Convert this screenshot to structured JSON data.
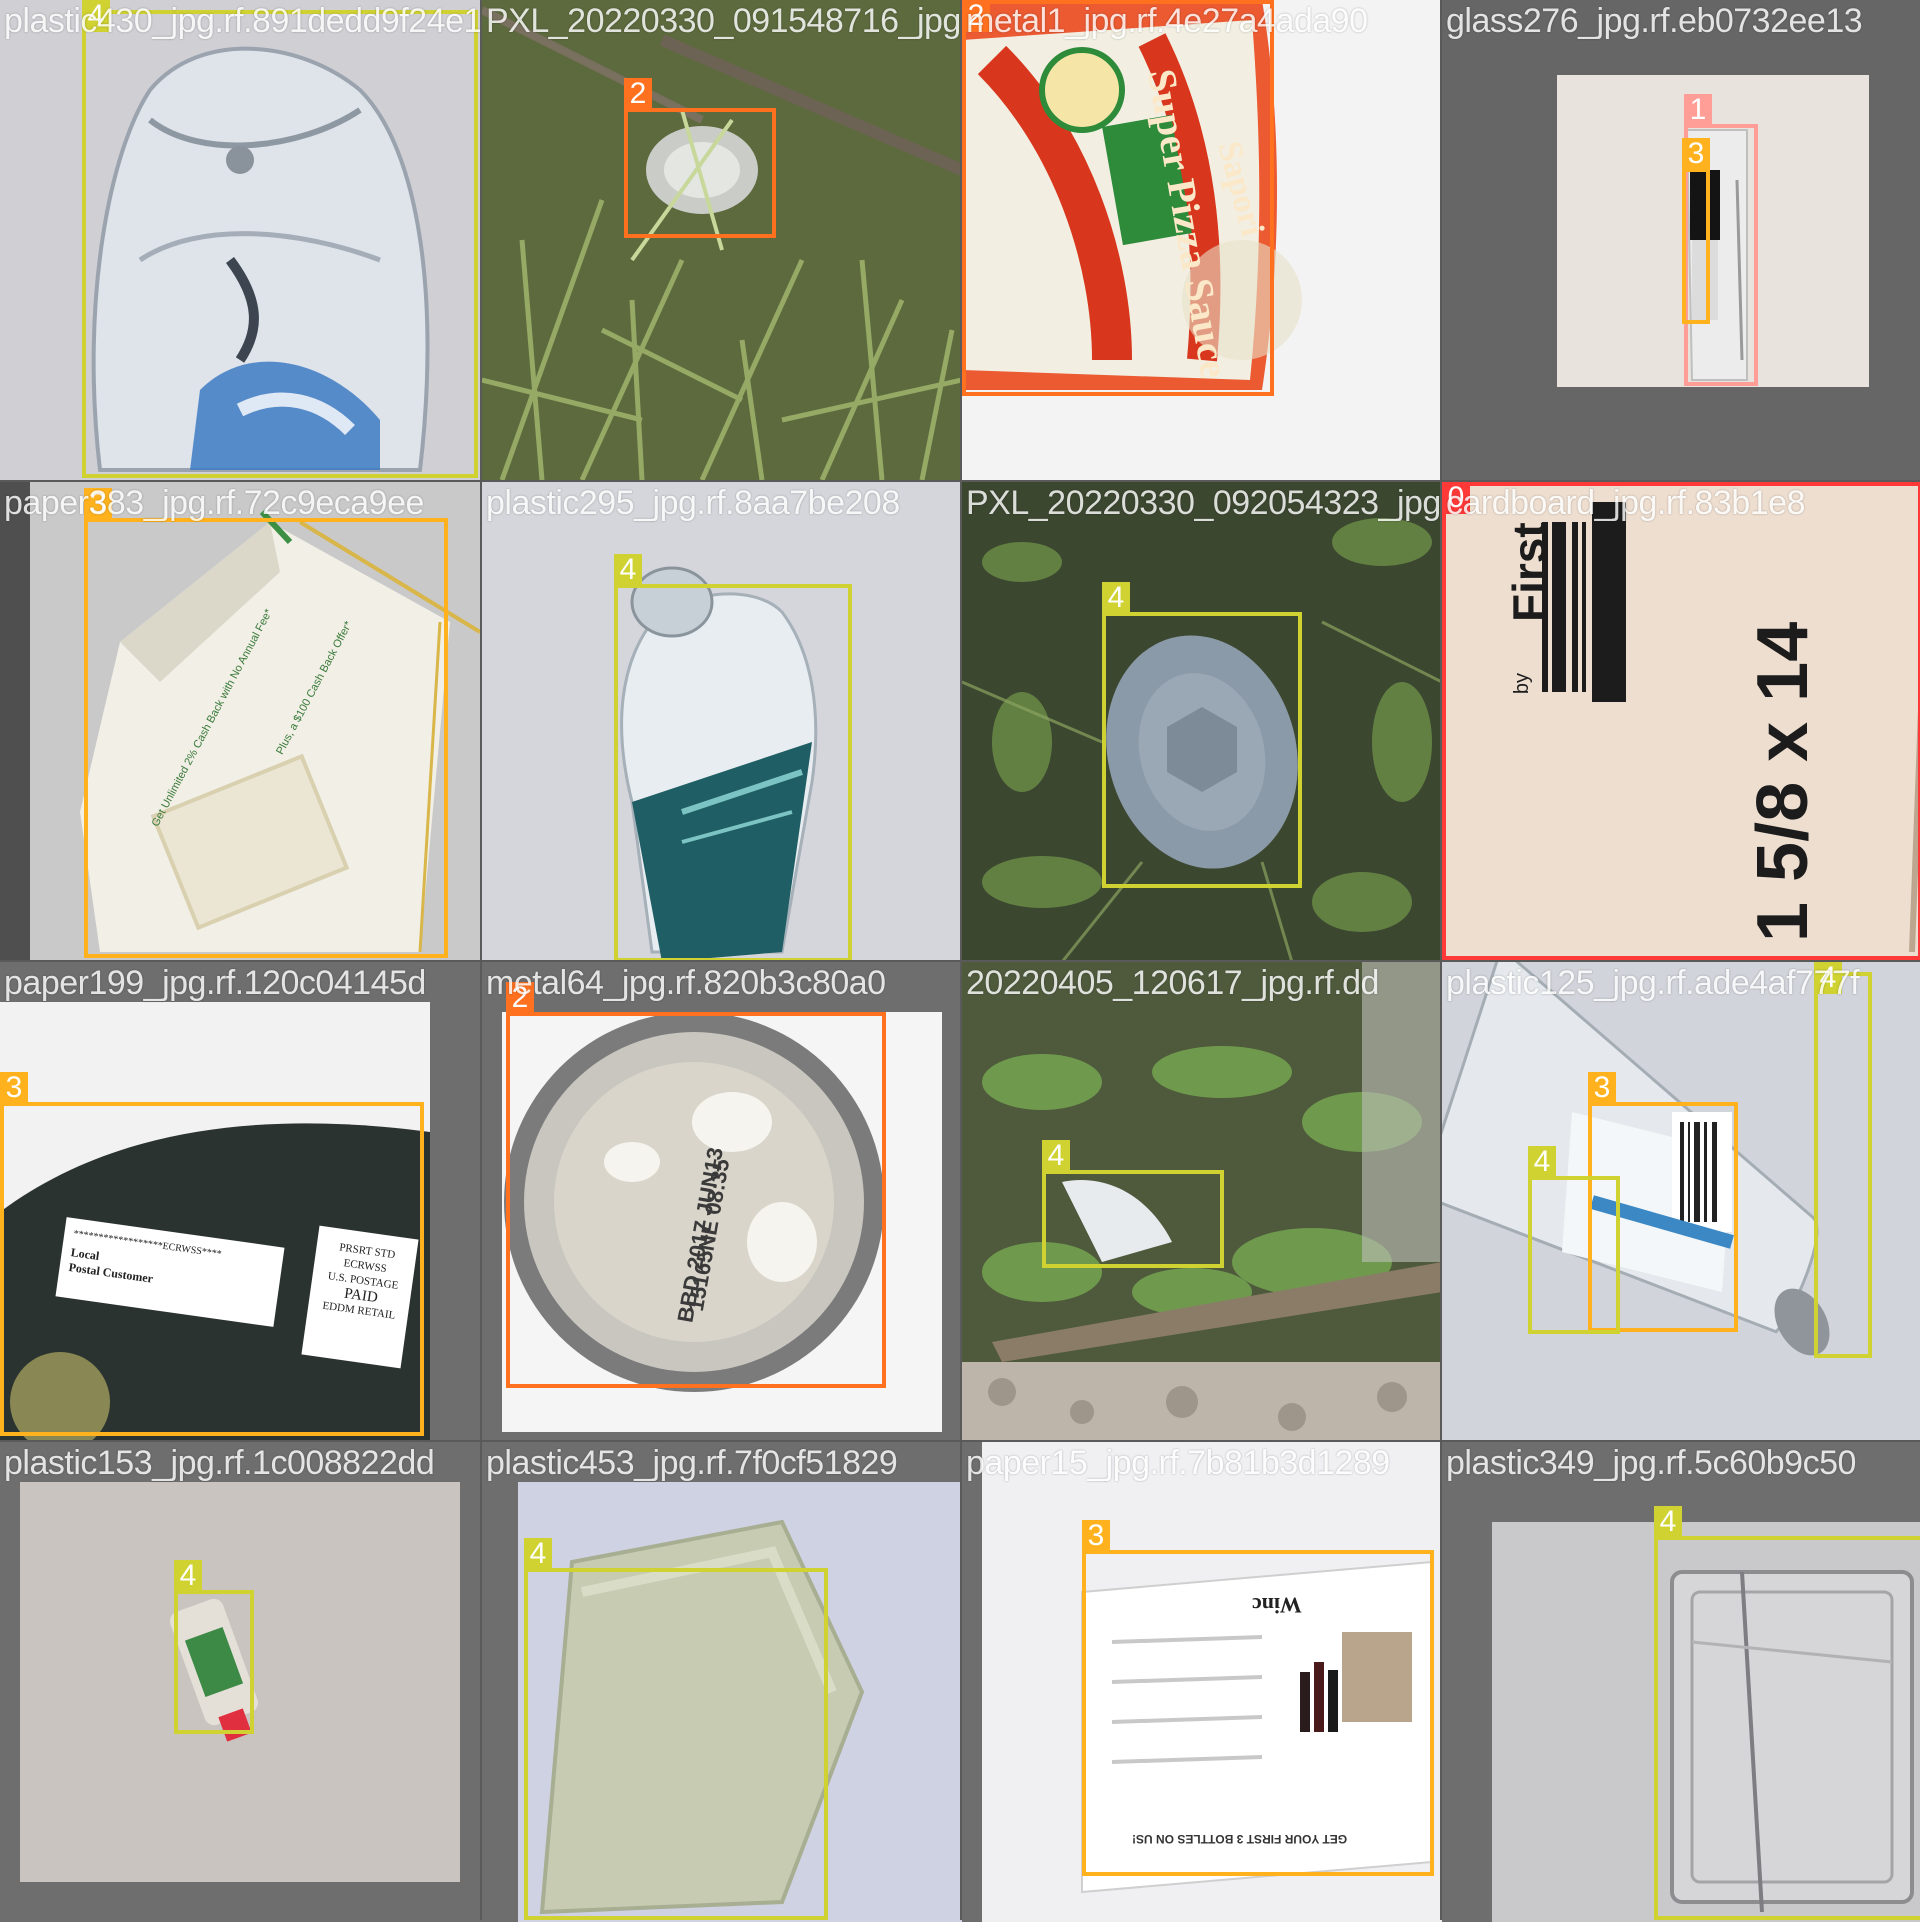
{
  "colors": {
    "class_0": "#ff3838",
    "class_1": "#ff9d97",
    "class_2": "#ff701f",
    "class_3": "#ffb21d",
    "class_4": "#cfd231"
  },
  "tiles": [
    {
      "filename": "plastic430_jpg.rf.891dedd9f24e1b0296370",
      "scene": "clear-plastic-bottle-bottom",
      "boxes": [
        {
          "label": "4",
          "cls": "class_4"
        }
      ]
    },
    {
      "filename": "PXL_20220330_091548716_jpg.rf",
      "scene": "grass-with-can",
      "boxes": [
        {
          "label": "2",
          "cls": "class_2"
        }
      ]
    },
    {
      "filename": "metal1_jpg.rf.4e27a4ada90",
      "scene": "pizza-sauce-can",
      "boxes": [
        {
          "label": "2",
          "cls": "class_2"
        }
      ]
    },
    {
      "filename": "glass276_jpg.rf.eb0732ee13",
      "scene": "glass-bottle-on-table",
      "boxes": [
        {
          "label": "1",
          "cls": "class_1"
        },
        {
          "label": "3",
          "cls": "class_3"
        }
      ]
    },
    {
      "filename": "paper383_jpg.rf.72c9eca9ee",
      "scene": "paper-envelope",
      "boxes": [
        {
          "label": "3",
          "cls": "class_3"
        }
      ]
    },
    {
      "filename": "plastic295_jpg.rf.8aa7be208",
      "scene": "water-bottle-teal-label",
      "boxes": [
        {
          "label": "4",
          "cls": "class_4"
        }
      ]
    },
    {
      "filename": "PXL_20220330_092054323_jpg.rf",
      "scene": "grass-with-lid",
      "boxes": [
        {
          "label": "4",
          "cls": "class_4"
        }
      ]
    },
    {
      "filename": "cardboard_jpg.rf.83b1e8",
      "scene": "cardboard-box-print",
      "boxes": [
        {
          "label": "0",
          "cls": "class_0"
        }
      ]
    },
    {
      "filename": "paper199_jpg.rf.120c04145d",
      "scene": "mail-postal-customer",
      "boxes": [
        {
          "label": "3",
          "cls": "class_3"
        }
      ]
    },
    {
      "filename": "metal64_jpg.rf.820b3c80a0",
      "scene": "can-bottom",
      "boxes": [
        {
          "label": "2",
          "cls": "class_2"
        }
      ]
    },
    {
      "filename": "20220405_120617_jpg.rf.dd",
      "scene": "plants-with-plastic",
      "boxes": [
        {
          "label": "4",
          "cls": "class_4"
        }
      ]
    },
    {
      "filename": "plastic125_jpg.rf.ade4af777f",
      "scene": "water-bottle-barcode",
      "boxes": [
        {
          "label": "4",
          "cls": "class_4"
        },
        {
          "label": "3",
          "cls": "class_3"
        },
        {
          "label": "4",
          "cls": "class_4"
        }
      ]
    },
    {
      "filename": "plastic153_jpg.rf.1c008822dd",
      "scene": "small-tube",
      "boxes": [
        {
          "label": "4",
          "cls": "class_4"
        }
      ]
    },
    {
      "filename": "plastic453_jpg.rf.7f0cf51829",
      "scene": "white-plastic-block",
      "boxes": [
        {
          "label": "4",
          "cls": "class_4"
        }
      ]
    },
    {
      "filename": "paper15_jpg.rf.7b81b3d1289",
      "scene": "wine-paper-flyer",
      "boxes": [
        {
          "label": "3",
          "cls": "class_3"
        }
      ]
    },
    {
      "filename": "plastic349_jpg.rf.5c60b9c50",
      "scene": "clear-clamshell",
      "boxes": [
        {
          "label": "4",
          "cls": "class_4"
        }
      ]
    }
  ],
  "flyer": {
    "brand": "Winc",
    "cta": "GET YOUR FIRST 3 BOTTLES ON US!"
  },
  "mail": {
    "ecrwss": "******************ECRWSS****",
    "line1": "Local",
    "line2": "Postal Customer",
    "stamp": [
      "PRSRT STD",
      "ECRWSS",
      "U.S. POSTAGE",
      "PAID",
      "EDDM RETAIL"
    ]
  },
  "envelope": {
    "line1": "Get Unlimited 2% Cash Back with No Annual Fee*",
    "line2": "Plus, a $100 Cash Back Offer*"
  },
  "can": {
    "brand": "Sapori",
    "product": "Super Pizza Sauce"
  },
  "can_bottom": {
    "code1": "BBD 2017 JUN13",
    "code2": "15165NE 08:35"
  },
  "cardboard": {
    "brand": "First",
    "by": "by",
    "size": "1 5/8 x 14"
  }
}
